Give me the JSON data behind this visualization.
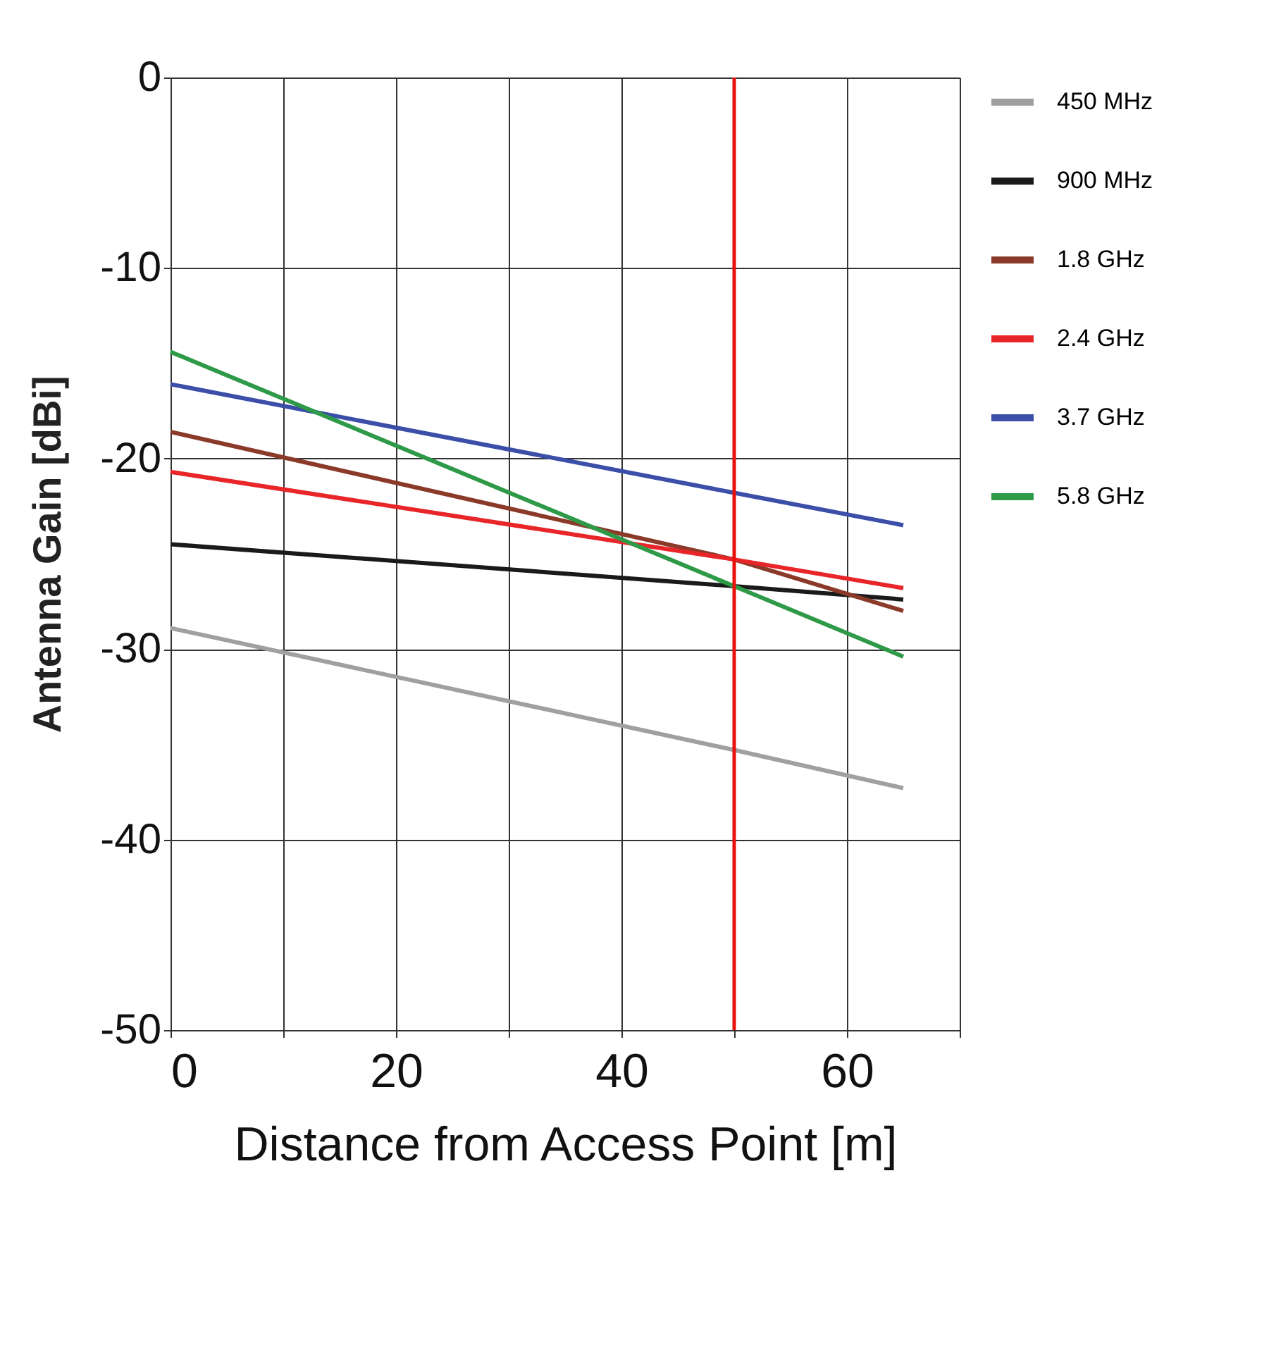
{
  "chart_data": {
    "type": "line",
    "xlabel": "Distance from Access Point [m]",
    "ylabel": "Antenna Gain [dBi]",
    "x": [
      0,
      50,
      65
    ],
    "series": [
      {
        "name": "450 MHz",
        "color": "#a0a0a0",
        "values": [
          -28.9,
          -35.3,
          -37.3
        ]
      },
      {
        "name": "900 MHz",
        "color": "#1a1a1a",
        "values": [
          -24.5,
          -26.7,
          -27.4
        ]
      },
      {
        "name": "1.8 GHz",
        "color": "#8b3a2a",
        "values": [
          -18.6,
          -25.3,
          -28.0
        ]
      },
      {
        "name": "2.4 GHz",
        "color": "#e8262a",
        "values": [
          -20.7,
          -25.3,
          -26.8
        ]
      },
      {
        "name": "3.7 GHz",
        "color": "#3b4ea8",
        "values": [
          -16.1,
          -21.8,
          -23.5
        ]
      },
      {
        "name": "5.8 GHz",
        "color": "#2e9a48",
        "values": [
          -14.4,
          -26.7,
          -30.4
        ]
      }
    ],
    "xlim": [
      0,
      70
    ],
    "xticks": [
      0,
      {
        "value": 10,
        "label": null
      },
      20,
      {
        "value": 30,
        "label": null
      },
      40,
      {
        "value": 50,
        "label": null
      },
      60,
      {
        "value": 70,
        "label": null
      }
    ],
    "ylim": [
      -50,
      0
    ],
    "yticks": [
      -50,
      -40,
      -30,
      -20,
      -10,
      0
    ],
    "grid": true,
    "legend": "right",
    "marker": "none",
    "line_style": "solid",
    "ref_lines": [
      {
        "axis": "x",
        "value": 50,
        "color": "#e8120c"
      }
    ]
  }
}
